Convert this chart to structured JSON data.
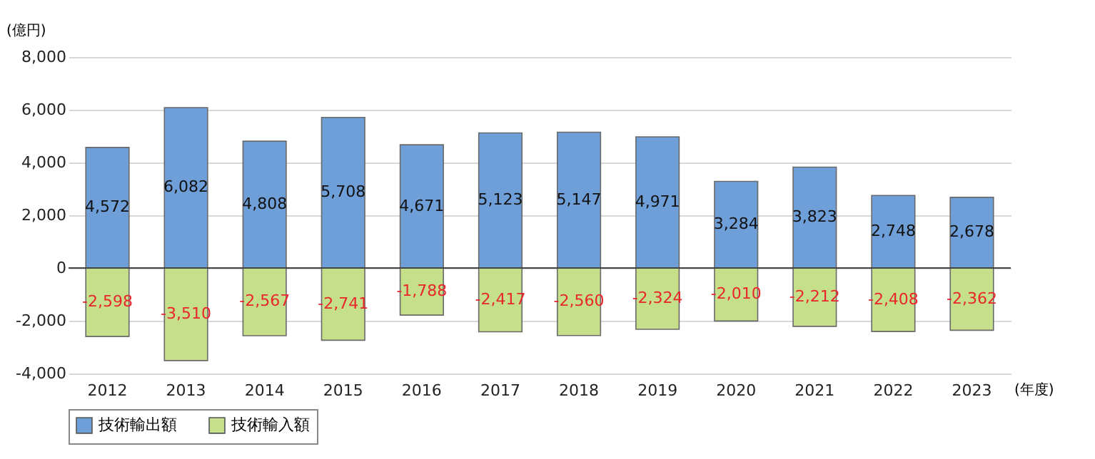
{
  "chart_data": {
    "type": "bar",
    "stacked": true,
    "ylabel": "(億円)",
    "xlabel": "(年度)",
    "categories": [
      "2012",
      "2013",
      "2014",
      "2015",
      "2016",
      "2017",
      "2018",
      "2019",
      "2020",
      "2021",
      "2022",
      "2023"
    ],
    "series": [
      {
        "name": "技術輸出額",
        "color": "#6f9fd8",
        "values": [
          4572,
          6082,
          4808,
          5708,
          4671,
          5123,
          5147,
          4971,
          3284,
          3823,
          2748,
          2678
        ],
        "value_labels": [
          "4,572",
          "6,082",
          "4,808",
          "5,708",
          "4,671",
          "5,123",
          "5,147",
          "4,971",
          "3,284",
          "3,823",
          "2,748",
          "2,678"
        ]
      },
      {
        "name": "技術輸入額",
        "color": "#c5df8a",
        "values": [
          -2598,
          -3510,
          -2567,
          -2741,
          -1788,
          -2417,
          -2560,
          -2324,
          -2010,
          -2212,
          -2408,
          -2362
        ],
        "value_labels": [
          "-2,598",
          "-3,510",
          "-2,567",
          "-2,741",
          "-1,788",
          "-2,417",
          "-2,560",
          "-2,324",
          "-2,010",
          "-2,212",
          "-2,408",
          "-2,362"
        ]
      }
    ],
    "ylim": [
      -4000,
      8000
    ],
    "yticks": [
      {
        "value": -4000,
        "label": "-4,000"
      },
      {
        "value": -2000,
        "label": "-2,000"
      },
      {
        "value": 0,
        "label": "0"
      },
      {
        "value": 2000,
        "label": "2,000"
      },
      {
        "value": 4000,
        "label": "4,000"
      },
      {
        "value": 6000,
        "label": "6,000"
      },
      {
        "value": 8000,
        "label": "8,000"
      }
    ],
    "legend": "bottom",
    "grid": "y"
  }
}
